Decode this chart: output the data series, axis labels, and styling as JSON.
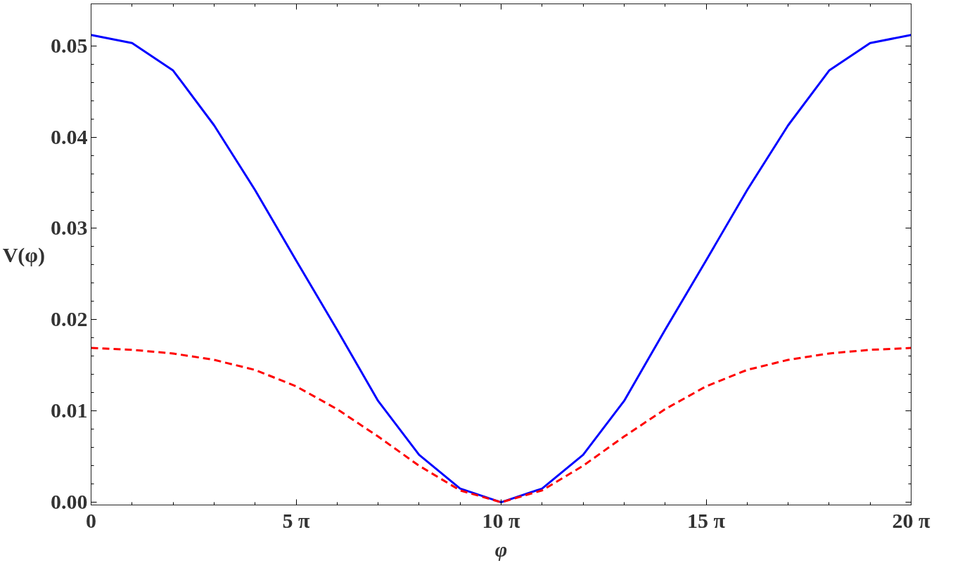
{
  "chart_data": {
    "type": "line",
    "xlabel": "φ",
    "ylabel": "V(φ)",
    "x": [
      0,
      3.1416,
      6.2832,
      9.4248,
      12.566,
      15.708,
      18.85,
      21.991,
      25.133,
      28.274,
      31.416,
      34.558,
      37.699,
      40.841,
      43.982,
      47.124,
      50.265,
      53.407,
      56.549,
      59.69,
      62.832
    ],
    "series": [
      {
        "color": "#0000ff",
        "line_style": "solid",
        "values": [
          0.0512,
          0.0503,
          0.0473,
          0.0413,
          0.0342,
          0.0265,
          0.0189,
          0.0111,
          0.0052,
          0.0015,
          0,
          0.0015,
          0.0052,
          0.0111,
          0.0189,
          0.0265,
          0.0342,
          0.0413,
          0.0473,
          0.0503,
          0.0512
        ]
      },
      {
        "color": "#ff0000",
        "line_style": "dashed",
        "values": [
          0.0169,
          0.0167,
          0.0163,
          0.0156,
          0.0145,
          0.0127,
          0.0102,
          0.0072,
          0.004,
          0.0013,
          0,
          0.0013,
          0.004,
          0.0072,
          0.0102,
          0.0127,
          0.0145,
          0.0156,
          0.0163,
          0.0167,
          0.0169
        ]
      }
    ],
    "xlim": [
      0,
      62.832
    ],
    "ylim": [
      -0.0003,
      0.0546
    ],
    "xticks": [
      {
        "value": 0,
        "label": "0"
      },
      {
        "value": 15.708,
        "label": "5 π"
      },
      {
        "value": 31.416,
        "label": "10 π"
      },
      {
        "value": 47.124,
        "label": "15 π"
      },
      {
        "value": 62.832,
        "label": "20 π"
      }
    ],
    "yticks": [
      {
        "value": 0,
        "label": "0.00"
      },
      {
        "value": 0.01,
        "label": "0.01"
      },
      {
        "value": 0.02,
        "label": "0.02"
      },
      {
        "value": 0.03,
        "label": "0.03"
      },
      {
        "value": 0.04,
        "label": "0.04"
      },
      {
        "value": 0.05,
        "label": "0.05"
      }
    ],
    "marker": "none"
  }
}
